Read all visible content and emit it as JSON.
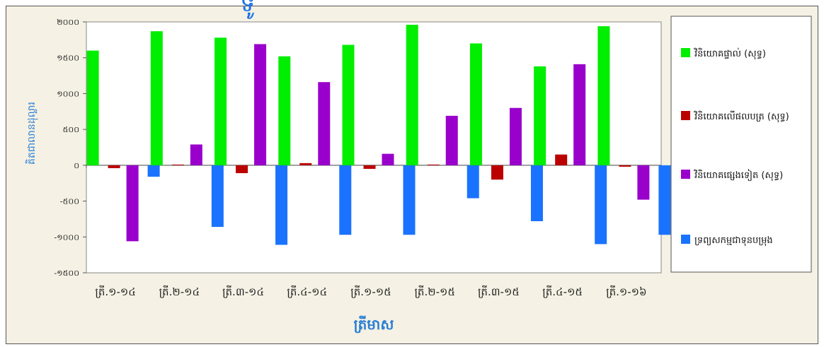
{
  "chart_data": {
    "type": "bar",
    "title_fragment": "ទូ",
    "xlabel": "ត្រីមាស",
    "ylabel": "គិតជាលានដុល្លារ",
    "categories": [
      "ត្រី.១-១៤",
      "ត្រី.២-១៤",
      "ត្រី.៣-១៤",
      "ត្រី.៤-១៤",
      "ត្រី.១-១៥",
      "ត្រី.២-១៥",
      "ត្រី.៣-១៥",
      "ត្រី.៤-១៥",
      "ត្រី.១-១៦"
    ],
    "ylim": [
      -1500,
      2000
    ],
    "yticks": [
      -1500,
      -1000,
      -500,
      0,
      500,
      1000,
      1500,
      2000
    ],
    "ytick_labels": [
      "-១៥០០",
      "-១០០០",
      "-៥០០",
      "០",
      "៥០០",
      "១០០០",
      "១៥០០",
      "២០០០"
    ],
    "series": [
      {
        "name": "វិនិយោគផ្ទាល់ (សុទ្ធ)",
        "color": "#00ee00",
        "values": [
          1600,
          1870,
          1780,
          1520,
          1680,
          1960,
          1700,
          1380,
          1940
        ]
      },
      {
        "name": "វិនិយោគលើផលបត្រ (សុទ្ធ)",
        "color": "#bb0000",
        "values": [
          -40,
          10,
          -110,
          30,
          -50,
          10,
          -200,
          150,
          -20
        ]
      },
      {
        "name": "វិនិយោគផ្សេងទៀត (សុទ្ធ)",
        "color": "#9900cc",
        "values": [
          -1060,
          290,
          1690,
          1160,
          160,
          690,
          800,
          1410,
          -480
        ]
      },
      {
        "name": "ទ្រព្យសកម្មជាទុនបម្រុង",
        "color": "#1a73ff",
        "values": [
          -160,
          -860,
          -1110,
          -970,
          -970,
          -460,
          -780,
          -1100,
          -970
        ]
      }
    ],
    "grid": false,
    "legend_position": "right"
  }
}
